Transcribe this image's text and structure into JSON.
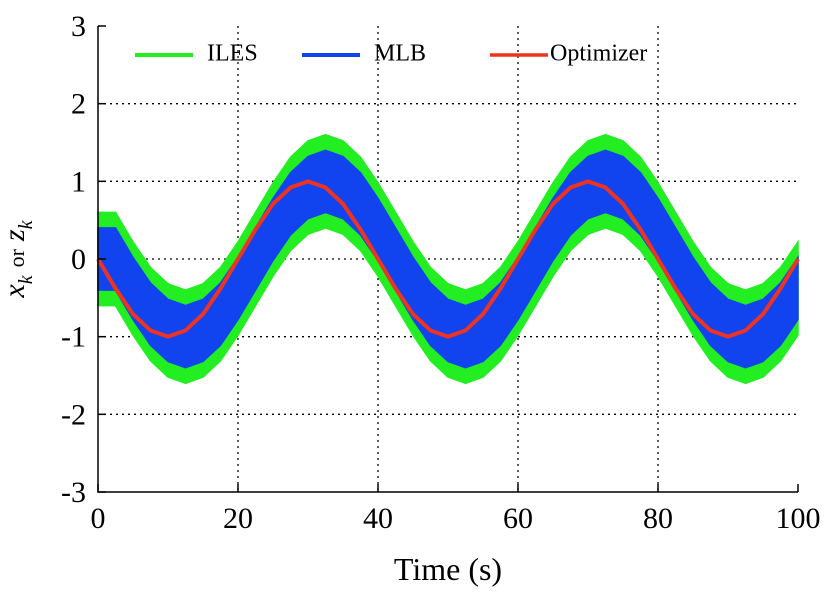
{
  "chart_data": {
    "type": "band-line",
    "xlabel": "Time (s)",
    "ylabel": [
      "x",
      "k",
      "or",
      "z",
      "k"
    ],
    "xlim": [
      0,
      100
    ],
    "ylim": [
      -3,
      3
    ],
    "xticks": [
      0,
      20,
      40,
      60,
      80,
      100
    ],
    "yticks": [
      -3,
      -2,
      -1,
      0,
      1,
      2,
      3
    ],
    "grid": true,
    "legend": "top",
    "x": [
      0,
      2.5,
      5,
      7.5,
      10,
      12.5,
      15,
      17.5,
      20,
      22.5,
      25,
      27.5,
      30,
      32.5,
      35,
      37.5,
      40,
      42.5,
      45,
      47.5,
      50,
      52.5,
      55,
      57.5,
      60,
      62.5,
      65,
      67.5,
      70,
      72.5,
      75,
      77.5,
      80,
      82.5,
      85,
      87.5,
      90,
      92.5,
      95,
      97.5,
      100
    ],
    "series": [
      {
        "name": "ILES",
        "color": "#22ee22",
        "kind": "band",
        "low": [
          -0.6,
          -0.6,
          -0.98,
          -1.31,
          -1.52,
          -1.6,
          -1.52,
          -1.31,
          -0.98,
          -0.6,
          -0.22,
          0.11,
          0.32,
          0.4,
          0.32,
          0.11,
          -0.22,
          -0.6,
          -0.98,
          -1.31,
          -1.52,
          -1.6,
          -1.52,
          -1.31,
          -0.98,
          -0.6,
          -0.22,
          0.11,
          0.32,
          0.4,
          0.32,
          0.11,
          -0.22,
          -0.6,
          -0.98,
          -1.31,
          -1.52,
          -1.6,
          -1.52,
          -1.31,
          -0.98
        ],
        "high": [
          0.6,
          0.6,
          0.22,
          -0.11,
          -0.32,
          -0.4,
          -0.32,
          -0.11,
          0.22,
          0.6,
          0.98,
          1.31,
          1.52,
          1.6,
          1.52,
          1.31,
          0.98,
          0.6,
          0.22,
          -0.11,
          -0.32,
          -0.4,
          -0.32,
          -0.11,
          0.22,
          0.6,
          0.98,
          1.31,
          1.52,
          1.6,
          1.52,
          1.31,
          0.98,
          0.6,
          0.22,
          -0.11,
          -0.32,
          -0.4,
          -0.32,
          -0.11,
          0.22
        ]
      },
      {
        "name": "MLB",
        "color": "#1144ee",
        "kind": "band",
        "low": [
          -0.4,
          -0.4,
          -0.78,
          -1.11,
          -1.32,
          -1.4,
          -1.32,
          -1.11,
          -0.78,
          -0.4,
          -0.02,
          0.31,
          0.52,
          0.6,
          0.52,
          0.31,
          -0.02,
          -0.4,
          -0.78,
          -1.11,
          -1.32,
          -1.4,
          -1.32,
          -1.11,
          -0.78,
          -0.4,
          -0.02,
          0.31,
          0.52,
          0.6,
          0.52,
          0.31,
          -0.02,
          -0.4,
          -0.78,
          -1.11,
          -1.32,
          -1.4,
          -1.32,
          -1.11,
          -0.78
        ],
        "high": [
          0.4,
          0.4,
          0.02,
          -0.31,
          -0.52,
          -0.6,
          -0.52,
          -0.31,
          0.02,
          0.4,
          0.78,
          1.11,
          1.32,
          1.4,
          1.32,
          1.11,
          0.78,
          0.4,
          0.02,
          -0.31,
          -0.52,
          -0.6,
          -0.52,
          -0.31,
          0.02,
          0.4,
          0.78,
          1.11,
          1.32,
          1.4,
          1.32,
          1.11,
          0.78,
          0.4,
          0.02,
          -0.31,
          -0.52,
          -0.6,
          -0.52,
          -0.31,
          0.02
        ]
      },
      {
        "name": "Optimizer",
        "color": "#ee3322",
        "kind": "line",
        "values": [
          0,
          -0.38,
          -0.71,
          -0.92,
          -1,
          -0.92,
          -0.71,
          -0.38,
          0,
          0.38,
          0.71,
          0.92,
          1,
          0.92,
          0.71,
          0.38,
          0,
          -0.38,
          -0.71,
          -0.92,
          -1,
          -0.92,
          -0.71,
          -0.38,
          0,
          0.38,
          0.71,
          0.92,
          1,
          0.92,
          0.71,
          0.38,
          0,
          -0.38,
          -0.71,
          -0.92,
          -1,
          -0.92,
          -0.71,
          -0.38,
          0
        ]
      }
    ]
  }
}
